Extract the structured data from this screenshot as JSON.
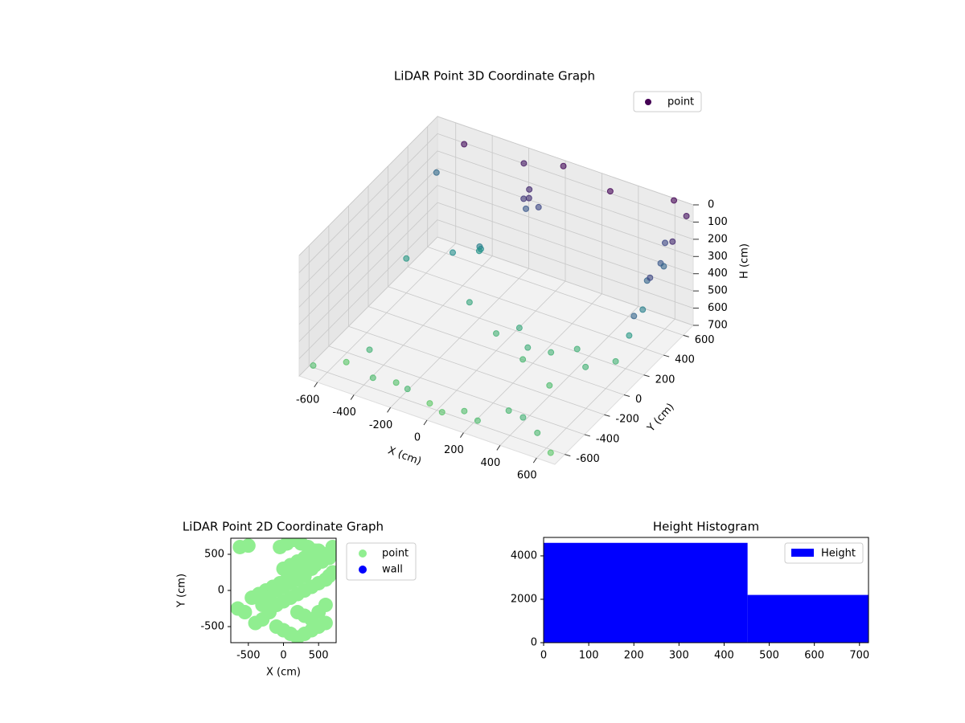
{
  "chart_data": [
    {
      "type": "scatter3d",
      "title": "LiDAR Point 3D Coordinate Graph",
      "xlabel": "X (cm)",
      "ylabel": "Y (cm)",
      "zlabel": "H (cm)",
      "xlim": [
        -700,
        700
      ],
      "ylim": [
        -700,
        700
      ],
      "zlim": [
        0,
        700
      ],
      "z_inverted": true,
      "xticks": [
        -600,
        -400,
        -200,
        0,
        200,
        400,
        600
      ],
      "yticks": [
        -600,
        -400,
        -200,
        0,
        200,
        400,
        600
      ],
      "zticks": [
        0,
        100,
        200,
        300,
        400,
        500,
        600,
        700
      ],
      "colormap": [
        "#440154",
        "#3b528b",
        "#21918c",
        "#5ec962"
      ],
      "legend": "upper right",
      "series": [
        {
          "name": "point",
          "color": "#440154",
          "x": [
            -650,
            -550,
            -450,
            -350,
            -250,
            -150,
            -50,
            50,
            150,
            250,
            350,
            450,
            550,
            650,
            -600,
            -400,
            -200,
            0,
            200,
            400,
            600,
            620,
            640,
            610,
            630,
            600,
            620,
            -120,
            -100,
            -80,
            -60,
            -140,
            -300,
            -280,
            -320,
            100,
            200,
            300,
            400,
            500,
            -500,
            -200,
            0,
            300,
            600,
            690,
            695,
            680,
            700,
            -700
          ],
          "y": [
            -650,
            -500,
            -450,
            -600,
            -550,
            -620,
            -580,
            -640,
            -600,
            -650,
            -520,
            -560,
            -600,
            -650,
            200,
            300,
            100,
            0,
            -100,
            -200,
            100,
            200,
            300,
            400,
            500,
            600,
            550,
            500,
            520,
            480,
            540,
            560,
            400,
            350,
            420,
            50,
            -50,
            0,
            80,
            -20,
            600,
            650,
            680,
            600,
            690,
            650,
            500,
            300,
            100,
            690
          ],
          "z": [
            650,
            680,
            600,
            640,
            660,
            620,
            690,
            670,
            650,
            640,
            620,
            600,
            630,
            680,
            500,
            450,
            550,
            600,
            620,
            640,
            600,
            500,
            400,
            300,
            250,
            200,
            300,
            150,
            100,
            120,
            200,
            250,
            450,
            400,
            480,
            560,
            580,
            600,
            590,
            600,
            30,
            60,
            20,
            10,
            5,
            40,
            100,
            200,
            300,
            320
          ]
        }
      ]
    },
    {
      "type": "scatter",
      "title": "LiDAR Point 2D Coordinate Graph",
      "xlabel": "X (cm)",
      "ylabel": "Y (cm)",
      "xlim": [
        -750,
        750
      ],
      "ylim": [
        -722,
        722
      ],
      "xticks": [
        -500,
        0,
        500
      ],
      "yticks": [
        -500,
        0,
        500
      ],
      "legend": "outside upper right",
      "series": [
        {
          "name": "point",
          "color": "#90ee90",
          "x": [
            -620,
            -500,
            -400,
            -300,
            -200,
            -100,
            0,
            100,
            200,
            300,
            400,
            500,
            600,
            650,
            700,
            -650,
            -550,
            -450,
            -350,
            -250,
            -150,
            -50,
            50,
            150,
            250,
            350,
            450,
            550,
            600,
            680,
            -300,
            -200,
            -100,
            0,
            100,
            200,
            300,
            400,
            500,
            600,
            700,
            -100,
            0,
            100,
            200,
            300,
            400,
            500,
            600,
            0,
            100,
            200,
            300,
            400,
            500,
            -50,
            50,
            150,
            250,
            350,
            450,
            550,
            650,
            200,
            300,
            400,
            500,
            600
          ],
          "y": [
            600,
            620,
            -450,
            -400,
            -300,
            -200,
            -150,
            -100,
            -50,
            0,
            50,
            100,
            150,
            200,
            250,
            -250,
            -300,
            -100,
            -50,
            0,
            50,
            100,
            150,
            200,
            250,
            300,
            350,
            400,
            450,
            500,
            -200,
            -100,
            0,
            50,
            100,
            150,
            200,
            300,
            400,
            500,
            600,
            -500,
            -550,
            -600,
            -650,
            -600,
            -550,
            -500,
            -450,
            300,
            350,
            400,
            450,
            500,
            550,
            600,
            650,
            700,
            650,
            600,
            550,
            500,
            450,
            -300,
            -350,
            -400,
            -300,
            -200
          ]
        },
        {
          "name": "wall",
          "color": "#0000ff",
          "x": [],
          "y": []
        }
      ]
    },
    {
      "type": "histogram",
      "title": "Height Histogram",
      "xlim": [
        0,
        720
      ],
      "ylim": [
        0,
        4850
      ],
      "xticks": [
        0,
        100,
        200,
        300,
        400,
        500,
        600,
        700
      ],
      "yticks": [
        0,
        2000,
        4000
      ],
      "legend": "upper right",
      "series": [
        {
          "name": "Height",
          "color": "#0000ff",
          "bins": [
            0,
            452,
            720
          ],
          "counts": [
            4600,
            2200
          ]
        }
      ]
    }
  ]
}
